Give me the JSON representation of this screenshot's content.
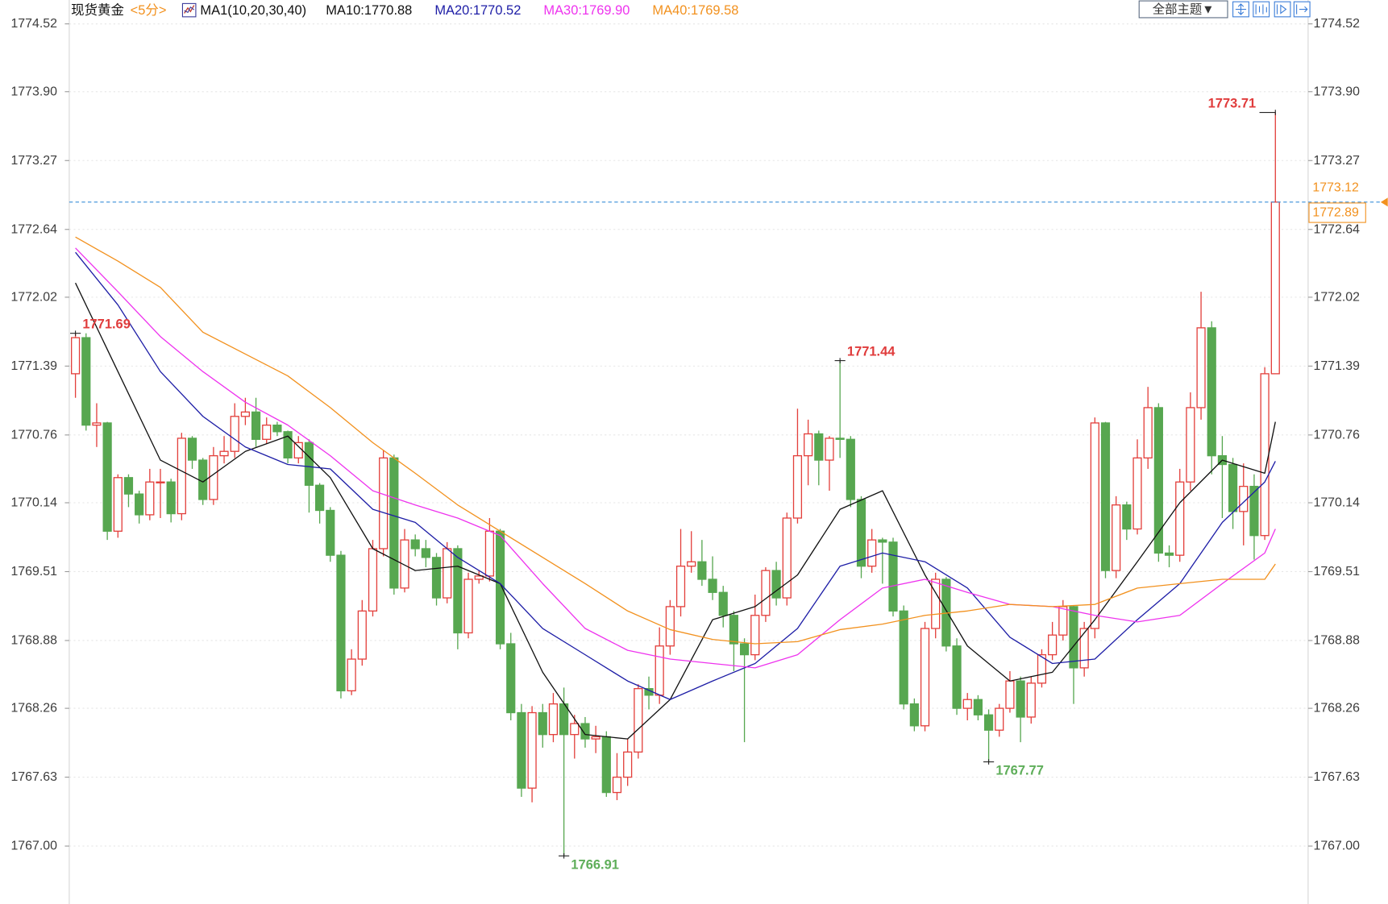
{
  "chart_data": {
    "type": "candlestick",
    "title": "现货黄金",
    "period": "<5分>",
    "indicator": "MA1(10,20,30,40)",
    "theme_button": "全部主题▼",
    "up_color": "#e3403c",
    "down_color": "#57a750",
    "open": [
      1771.32,
      1771.65,
      1770.85,
      1770.87,
      1769.88,
      1770.37,
      1770.22,
      1770.03,
      1770.33,
      1770.33,
      1770.04,
      1770.73,
      1770.53,
      1770.17,
      1770.57,
      1770.61,
      1770.93,
      1770.97,
      1770.72,
      1770.85,
      1770.79,
      1770.55,
      1770.69,
      1770.3,
      1770.07,
      1769.66,
      1768.42,
      1768.71,
      1769.15,
      1769.72,
      1770.55,
      1769.36,
      1769.8,
      1769.72,
      1769.64,
      1769.27,
      1769.72,
      1768.95,
      1769.44,
      1769.47,
      1769.88,
      1768.85,
      1768.22,
      1767.53,
      1768.22,
      1768.02,
      1768.3,
      1768.02,
      1768.12,
      1767.98,
      1768.0,
      1767.49,
      1767.63,
      1767.86,
      1768.44,
      1768.38,
      1768.83,
      1769.19,
      1769.56,
      1769.6,
      1769.44,
      1769.32,
      1769.11,
      1768.85,
      1768.75,
      1769.11,
      1769.52,
      1769.27,
      1770.0,
      1770.57,
      1770.77,
      1770.53,
      1770.73,
      1770.72,
      1770.17,
      1769.56,
      1769.8,
      1769.78,
      1769.15,
      1768.3,
      1768.1,
      1768.99,
      1769.44,
      1768.83,
      1768.26,
      1768.34,
      1768.2,
      1768.06,
      1768.26,
      1768.51,
      1768.18,
      1768.49,
      1768.75,
      1768.93,
      1769.19,
      1768.63,
      1768.99,
      1770.87,
      1769.52,
      1770.12,
      1769.9,
      1770.55,
      1771.01,
      1769.68,
      1769.66,
      1770.33,
      1771.01,
      1771.74,
      1770.57,
      1770.49,
      1770.06,
      1770.29,
      1769.84,
      1771.32
    ],
    "high": [
      1771.69,
      1771.69,
      1771.05,
      1770.88,
      1770.4,
      1770.4,
      1770.25,
      1770.45,
      1770.45,
      1770.36,
      1770.78,
      1770.75,
      1770.55,
      1770.65,
      1770.75,
      1771.05,
      1771.1,
      1771.1,
      1770.92,
      1770.88,
      1770.8,
      1770.75,
      1770.72,
      1770.32,
      1770.1,
      1769.7,
      1768.8,
      1769.25,
      1769.8,
      1770.62,
      1770.58,
      1769.9,
      1769.85,
      1769.8,
      1769.68,
      1769.78,
      1769.75,
      1769.5,
      1769.52,
      1770.0,
      1769.9,
      1768.95,
      1768.3,
      1768.28,
      1768.3,
      1768.4,
      1768.45,
      1768.2,
      1768.18,
      1768.1,
      1768.05,
      1767.85,
      1767.98,
      1768.48,
      1768.55,
      1769.0,
      1769.25,
      1769.9,
      1769.88,
      1769.8,
      1769.65,
      1769.38,
      1769.15,
      1768.9,
      1769.3,
      1769.55,
      1769.6,
      1770.05,
      1771.0,
      1770.9,
      1770.8,
      1770.75,
      1771.44,
      1770.75,
      1770.2,
      1769.9,
      1769.82,
      1769.82,
      1769.2,
      1768.35,
      1769.05,
      1769.5,
      1769.46,
      1768.9,
      1768.4,
      1768.38,
      1768.25,
      1768.3,
      1768.6,
      1768.55,
      1768.55,
      1768.8,
      1769.05,
      1769.25,
      1769.2,
      1769.05,
      1770.92,
      1770.88,
      1770.2,
      1770.15,
      1770.72,
      1771.2,
      1771.05,
      1769.75,
      1770.45,
      1771.15,
      1772.07,
      1771.8,
      1770.75,
      1770.55,
      1770.5,
      1770.4,
      1771.38,
      1773.71
    ],
    "low": [
      1771.1,
      1770.8,
      1770.65,
      1769.8,
      1769.82,
      1770.1,
      1769.95,
      1769.98,
      1770.0,
      1769.96,
      1769.98,
      1770.45,
      1770.12,
      1770.12,
      1770.5,
      1770.55,
      1770.85,
      1770.65,
      1770.68,
      1770.75,
      1770.5,
      1770.5,
      1770.05,
      1769.95,
      1769.6,
      1768.35,
      1768.38,
      1768.65,
      1769.1,
      1769.65,
      1769.3,
      1769.32,
      1769.65,
      1769.55,
      1769.2,
      1769.22,
      1768.8,
      1768.9,
      1769.4,
      1769.42,
      1768.8,
      1768.15,
      1767.45,
      1767.4,
      1767.9,
      1767.95,
      1766.91,
      1767.8,
      1767.9,
      1767.85,
      1767.45,
      1767.42,
      1767.55,
      1767.8,
      1768.25,
      1768.3,
      1768.75,
      1769.1,
      1769.5,
      1769.38,
      1769.25,
      1769.0,
      1768.6,
      1767.95,
      1768.7,
      1769.05,
      1769.2,
      1769.2,
      1769.95,
      1770.3,
      1770.3,
      1770.25,
      1770.55,
      1770.1,
      1769.45,
      1769.5,
      1769.4,
      1769.1,
      1768.25,
      1768.05,
      1768.05,
      1768.9,
      1768.78,
      1768.2,
      1768.15,
      1768.15,
      1767.77,
      1768.0,
      1768.22,
      1767.95,
      1768.12,
      1768.45,
      1768.7,
      1768.88,
      1768.3,
      1768.55,
      1768.9,
      1769.45,
      1769.45,
      1769.8,
      1769.85,
      1770.45,
      1769.6,
      1769.55,
      1769.6,
      1770.25,
      1770.9,
      1770.4,
      1770.0,
      1769.9,
      1769.75,
      1769.62,
      1769.8,
      1771.32
    ],
    "close": [
      1771.65,
      1770.85,
      1770.87,
      1769.88,
      1770.37,
      1770.22,
      1770.03,
      1770.33,
      1770.33,
      1770.04,
      1770.73,
      1770.53,
      1770.17,
      1770.57,
      1770.61,
      1770.93,
      1770.97,
      1770.72,
      1770.85,
      1770.79,
      1770.55,
      1770.69,
      1770.3,
      1770.07,
      1769.66,
      1768.42,
      1768.71,
      1769.15,
      1769.72,
      1770.55,
      1769.36,
      1769.8,
      1769.72,
      1769.64,
      1769.27,
      1769.72,
      1768.95,
      1769.44,
      1769.47,
      1769.88,
      1768.85,
      1768.22,
      1767.53,
      1768.22,
      1768.02,
      1768.3,
      1768.02,
      1768.12,
      1767.98,
      1768.0,
      1767.49,
      1767.63,
      1767.86,
      1768.44,
      1768.38,
      1768.83,
      1769.19,
      1769.56,
      1769.6,
      1769.44,
      1769.32,
      1769.11,
      1768.85,
      1768.75,
      1769.11,
      1769.52,
      1769.27,
      1770.0,
      1770.57,
      1770.77,
      1770.53,
      1770.73,
      1770.72,
      1770.17,
      1769.56,
      1769.8,
      1769.78,
      1769.15,
      1768.3,
      1768.1,
      1768.99,
      1769.44,
      1768.83,
      1768.26,
      1768.34,
      1768.2,
      1768.06,
      1768.26,
      1768.51,
      1768.18,
      1768.49,
      1768.75,
      1768.93,
      1769.19,
      1768.63,
      1768.99,
      1770.87,
      1769.52,
      1770.12,
      1769.9,
      1770.55,
      1771.01,
      1769.68,
      1769.66,
      1770.33,
      1771.01,
      1771.74,
      1770.57,
      1770.49,
      1770.06,
      1770.29,
      1769.84,
      1771.32,
      1772.89
    ],
    "series": [
      {
        "name": "MA10:1770.88",
        "color": "#111111",
        "x": [
          0,
          4,
          8,
          12,
          16,
          20,
          24,
          28,
          32,
          36,
          40,
          44,
          48,
          52,
          56,
          60,
          64,
          68,
          72,
          76,
          80,
          84,
          88,
          92,
          96,
          100,
          104,
          108,
          112,
          113
        ],
        "values": [
          1772.15,
          1771.34,
          1770.53,
          1770.33,
          1770.61,
          1770.75,
          1770.37,
          1769.72,
          1769.52,
          1769.56,
          1769.4,
          1768.59,
          1768.02,
          1767.98,
          1768.34,
          1769.07,
          1769.19,
          1769.48,
          1770.08,
          1770.25,
          1769.48,
          1768.83,
          1768.51,
          1768.59,
          1769.07,
          1769.6,
          1770.14,
          1770.53,
          1770.41,
          1770.88
        ]
      },
      {
        "name": "MA20:1770.52",
        "color": "#1d1da6",
        "x": [
          0,
          4,
          8,
          12,
          16,
          20,
          24,
          28,
          32,
          36,
          40,
          44,
          48,
          52,
          56,
          60,
          64,
          68,
          72,
          76,
          80,
          84,
          88,
          92,
          96,
          100,
          104,
          108,
          112,
          113
        ],
        "values": [
          1772.43,
          1771.95,
          1771.34,
          1770.93,
          1770.65,
          1770.49,
          1770.45,
          1770.08,
          1769.96,
          1769.64,
          1769.4,
          1768.99,
          1768.75,
          1768.51,
          1768.34,
          1768.51,
          1768.67,
          1768.99,
          1769.56,
          1769.68,
          1769.6,
          1769.36,
          1768.91,
          1768.67,
          1768.71,
          1769.07,
          1769.4,
          1769.96,
          1770.33,
          1770.52
        ]
      },
      {
        "name": "MA30:1769.90",
        "color": "#ee33ee",
        "x": [
          0,
          4,
          8,
          12,
          16,
          20,
          24,
          28,
          32,
          36,
          40,
          44,
          48,
          52,
          56,
          60,
          64,
          68,
          72,
          76,
          80,
          84,
          88,
          92,
          96,
          100,
          104,
          108,
          112,
          113
        ],
        "values": [
          1772.47,
          1772.07,
          1771.66,
          1771.34,
          1771.06,
          1770.85,
          1770.57,
          1770.25,
          1770.12,
          1770.0,
          1769.84,
          1769.4,
          1768.99,
          1768.79,
          1768.71,
          1768.67,
          1768.63,
          1768.75,
          1769.07,
          1769.36,
          1769.44,
          1769.32,
          1769.21,
          1769.19,
          1769.11,
          1769.05,
          1769.11,
          1769.4,
          1769.68,
          1769.9
        ]
      },
      {
        "name": "MA40:1769.58",
        "color": "#f2911e",
        "x": [
          0,
          4,
          8,
          12,
          16,
          20,
          24,
          28,
          32,
          36,
          40,
          44,
          48,
          52,
          56,
          60,
          64,
          68,
          72,
          76,
          80,
          84,
          88,
          92,
          96,
          100,
          104,
          108,
          112,
          113
        ],
        "values": [
          1772.57,
          1772.35,
          1772.11,
          1771.7,
          1771.5,
          1771.3,
          1771.01,
          1770.69,
          1770.41,
          1770.12,
          1769.88,
          1769.64,
          1769.4,
          1769.15,
          1768.98,
          1768.89,
          1768.85,
          1768.87,
          1768.98,
          1769.03,
          1769.11,
          1769.15,
          1769.21,
          1769.19,
          1769.21,
          1769.36,
          1769.4,
          1769.44,
          1769.44,
          1769.58
        ]
      }
    ],
    "ylim": [
      1766.47,
      1774.52
    ],
    "yticks": [
      {
        "value": 1767,
        "label": "1767.00"
      },
      1767.63,
      1768.26,
      1768.88,
      1769.51,
      1770.14,
      1770.76,
      1771.39,
      1772.02,
      1772.64,
      1773.27,
      {
        "value": 1773.9,
        "label": "1773.90"
      },
      1774.52
    ],
    "grid": true,
    "annotations": [
      {
        "x": 0,
        "value": 1771.69,
        "color": "#e03c3c"
      },
      {
        "x": 72,
        "value": 1771.44,
        "color": "#e03c3c"
      },
      {
        "x": 113,
        "value": 1773.71,
        "color": "#e03c3c"
      },
      {
        "x": 46,
        "value": 1766.91,
        "color": "#5fae5a"
      },
      {
        "x": 86,
        "value": 1767.77,
        "color": "#5fae5a"
      }
    ],
    "ask_price": 1773.12,
    "last_price": 1772.89,
    "price_color": "#f2911e"
  }
}
